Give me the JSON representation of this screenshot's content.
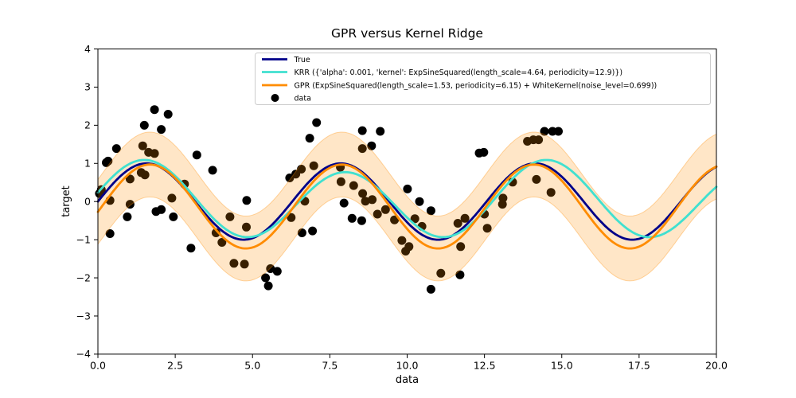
{
  "chart_data": {
    "type": "line",
    "title": "GPR versus Kernel Ridge",
    "xlabel": "data",
    "ylabel": "target",
    "xlim": [
      0,
      20
    ],
    "ylim": [
      -4,
      4
    ],
    "grid": false,
    "x_tick_values": [
      0,
      2.5,
      5,
      7.5,
      10,
      12.5,
      15,
      17.5,
      20
    ],
    "x_tick_labels": [
      "0.0",
      "2.5",
      "5.0",
      "7.5",
      "10.0",
      "12.5",
      "15.0",
      "17.5",
      "20.0"
    ],
    "y_tick_values": [
      4,
      3,
      2,
      1,
      0,
      -1,
      -2,
      -3,
      -4
    ],
    "y_tick_labels": [
      "4",
      "3",
      "2",
      "1",
      "0",
      "−1",
      "−2",
      "−3",
      "−4"
    ],
    "legend": {
      "position": "upper center",
      "border_color": "#cccccc",
      "entries": [
        {
          "label": "True",
          "type": "line",
          "color": "#000089"
        },
        {
          "label": "KRR ({'alpha': 0.001, 'kernel': ExpSineSquared(length_scale=4.64, periodicity=12.9)})",
          "type": "line",
          "color": "#40e0d0"
        },
        {
          "label": "GPR (ExpSineSquared(length_scale=1.53, periodicity=6.15) + WhiteKernel(noise_level=0.699))",
          "type": "line",
          "color": "#ff8c00"
        },
        {
          "label": "data",
          "type": "marker",
          "color": "#000000"
        }
      ]
    },
    "series": [
      {
        "name": "True",
        "color": "#000089",
        "linewidth": 2.8,
        "model": {
          "mean": 0,
          "components": [
            {
              "amp": 1.0,
              "period": 6.2832,
              "x_max": 1.5708
            }
          ]
        }
      },
      {
        "name": "KRR",
        "color": "#40e0d0",
        "linewidth": 2.8,
        "model": {
          "mean": 0,
          "components": [
            {
              "amp": 0.93,
              "period": 6.5,
              "x_max": 1.5
            },
            {
              "amp": 0.16,
              "period": 13.0,
              "x_max": 1.5
            }
          ]
        }
      },
      {
        "name": "GPR",
        "color": "#ff8c00",
        "linewidth": 2.8,
        "model": {
          "mean": -0.13,
          "components": [
            {
              "amp": 1.1,
              "period": 6.21,
              "x_max": 1.68
            }
          ]
        }
      }
    ],
    "band": {
      "series": "GPR",
      "half_width": 0.85,
      "fill": "rgba(255,140,0,0.22)",
      "edge": "rgba(255,140,0,0.35)"
    },
    "scatter": {
      "name": "data",
      "color": "#000000",
      "radius": 5.5,
      "points": [
        [
          0.05,
          0.21
        ],
        [
          0.11,
          0.31
        ],
        [
          0.27,
          1.02
        ],
        [
          0.33,
          1.06
        ],
        [
          0.39,
          0.03
        ],
        [
          0.39,
          -0.84
        ],
        [
          0.6,
          1.39
        ],
        [
          0.95,
          -0.4
        ],
        [
          1.04,
          0.59
        ],
        [
          1.04,
          -0.07
        ],
        [
          1.4,
          0.76
        ],
        [
          1.45,
          1.46
        ],
        [
          1.5,
          2.0
        ],
        [
          1.52,
          0.7
        ],
        [
          1.64,
          1.29
        ],
        [
          1.83,
          1.26
        ],
        [
          1.83,
          2.41
        ],
        [
          1.88,
          -0.26
        ],
        [
          2.05,
          1.89
        ],
        [
          2.05,
          -0.21
        ],
        [
          2.27,
          2.29
        ],
        [
          2.39,
          0.09
        ],
        [
          2.44,
          -0.4
        ],
        [
          2.8,
          0.46
        ],
        [
          3.01,
          -1.22
        ],
        [
          3.2,
          1.22
        ],
        [
          3.71,
          0.82
        ],
        [
          3.82,
          -0.82
        ],
        [
          4.01,
          -1.07
        ],
        [
          4.27,
          -0.4
        ],
        [
          4.4,
          -1.62
        ],
        [
          4.74,
          -1.64
        ],
        [
          4.8,
          -0.67
        ],
        [
          4.81,
          0.03
        ],
        [
          5.42,
          -2.0
        ],
        [
          5.51,
          -2.21
        ],
        [
          5.58,
          -1.76
        ],
        [
          5.8,
          -1.83
        ],
        [
          6.2,
          0.62
        ],
        [
          6.25,
          -0.42
        ],
        [
          6.4,
          0.72
        ],
        [
          6.58,
          0.85
        ],
        [
          6.6,
          -0.82
        ],
        [
          6.69,
          0.01
        ],
        [
          6.85,
          1.66
        ],
        [
          6.94,
          -0.77
        ],
        [
          6.98,
          0.94
        ],
        [
          7.07,
          2.07
        ],
        [
          7.84,
          0.9
        ],
        [
          7.86,
          0.52
        ],
        [
          7.96,
          -0.04
        ],
        [
          8.22,
          -0.44
        ],
        [
          8.27,
          0.42
        ],
        [
          8.53,
          -0.5
        ],
        [
          8.55,
          1.86
        ],
        [
          8.55,
          1.39
        ],
        [
          8.56,
          0.21
        ],
        [
          8.65,
          0.01
        ],
        [
          8.85,
          1.46
        ],
        [
          8.87,
          0.05
        ],
        [
          9.04,
          -0.33
        ],
        [
          9.13,
          1.84
        ],
        [
          9.3,
          -0.21
        ],
        [
          9.59,
          -0.48
        ],
        [
          9.83,
          -1.02
        ],
        [
          9.95,
          -1.3
        ],
        [
          10.01,
          0.33
        ],
        [
          10.06,
          -1.18
        ],
        [
          10.25,
          -0.45
        ],
        [
          10.4,
          0.0
        ],
        [
          10.48,
          -0.65
        ],
        [
          10.77,
          -0.24
        ],
        [
          10.77,
          -2.3
        ],
        [
          11.09,
          -1.88
        ],
        [
          11.64,
          -0.57
        ],
        [
          11.71,
          -1.92
        ],
        [
          11.73,
          -1.18
        ],
        [
          11.87,
          -0.44
        ],
        [
          12.33,
          1.27
        ],
        [
          12.48,
          1.29
        ],
        [
          12.5,
          -0.33
        ],
        [
          12.59,
          -0.7
        ],
        [
          13.08,
          -0.07
        ],
        [
          13.1,
          0.09
        ],
        [
          13.41,
          0.51
        ],
        [
          13.89,
          1.58
        ],
        [
          14.08,
          1.62
        ],
        [
          14.18,
          0.58
        ],
        [
          14.25,
          1.62
        ],
        [
          14.44,
          1.84
        ],
        [
          14.65,
          0.24
        ],
        [
          14.7,
          1.84
        ],
        [
          14.89,
          1.84
        ]
      ]
    }
  }
}
